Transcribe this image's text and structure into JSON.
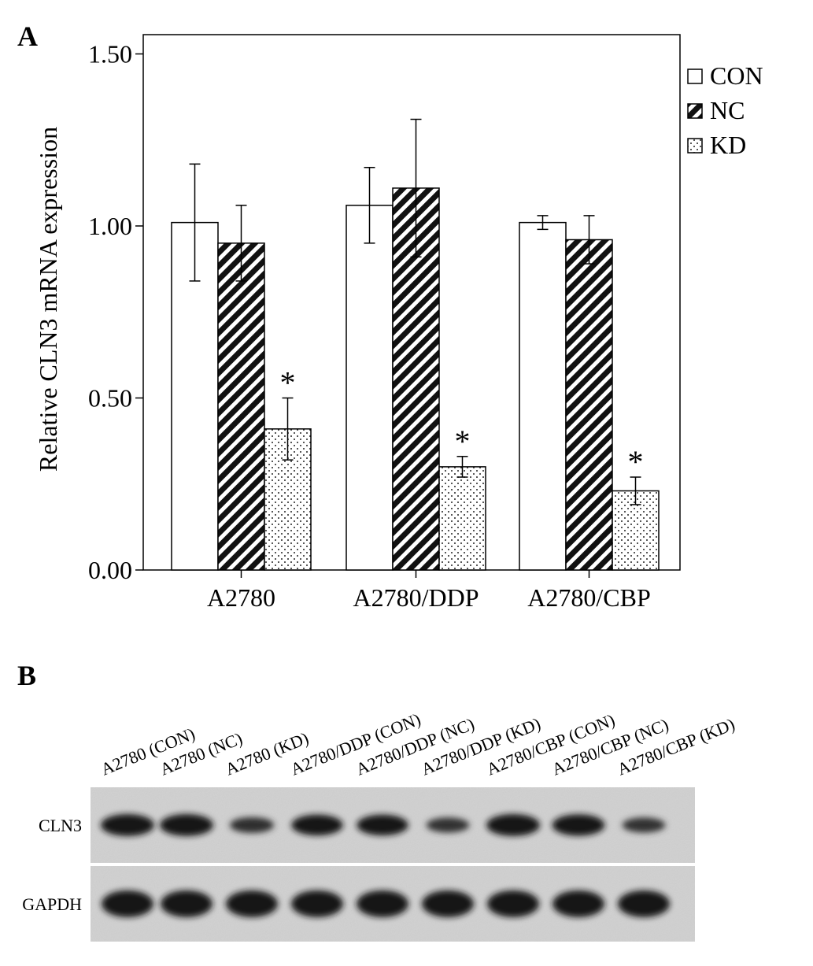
{
  "panels": {
    "a_label": "A",
    "b_label": "B"
  },
  "chart_data": {
    "type": "bar",
    "title": "",
    "xlabel": "",
    "ylabel": "Relative CLN3 mRNA expression",
    "ylim": [
      0,
      1.6
    ],
    "yticks": [
      "0.00",
      "0.50",
      "1.00",
      "1.50"
    ],
    "ytick_values": [
      0,
      0.5,
      1.0,
      1.5
    ],
    "categories": [
      "A2780",
      "A2780/DDP",
      "A2780/CBP"
    ],
    "series": [
      {
        "name": "CON",
        "values": [
          1.01,
          1.06,
          1.01
        ],
        "errors": [
          0.17,
          0.11,
          0.02
        ],
        "pattern": "white"
      },
      {
        "name": "NC",
        "values": [
          0.95,
          1.11,
          0.96
        ],
        "errors": [
          0.11,
          0.2,
          0.07
        ],
        "pattern": "hatch"
      },
      {
        "name": "KD",
        "values": [
          0.41,
          0.3,
          0.23
        ],
        "errors": [
          0.09,
          0.03,
          0.04
        ],
        "pattern": "dots"
      }
    ],
    "annotations": {
      "significance_marker": "*",
      "marked_series": "KD"
    },
    "legend": {
      "placement": "top-right outside"
    },
    "grid": false
  },
  "blot": {
    "lanes": [
      "A2780 (CON)",
      "A2780 (NC)",
      "A2780 (KD)",
      "A2780/DDP (CON)",
      "A2780/DDP (NC)",
      "A2780/DDP (KD)",
      "A2780/CBP (CON)",
      "A2780/CBP (NC)",
      "A2780/CBP (KD)"
    ],
    "rows": [
      {
        "label": "CLN3",
        "intensity": [
          1.0,
          1.0,
          0.5,
          0.9,
          0.9,
          0.45,
          1.0,
          0.95,
          0.45
        ]
      },
      {
        "label": "GAPDH",
        "intensity": [
          1.0,
          1.0,
          1.0,
          1.0,
          1.0,
          1.0,
          1.0,
          1.0,
          1.0
        ]
      }
    ]
  }
}
